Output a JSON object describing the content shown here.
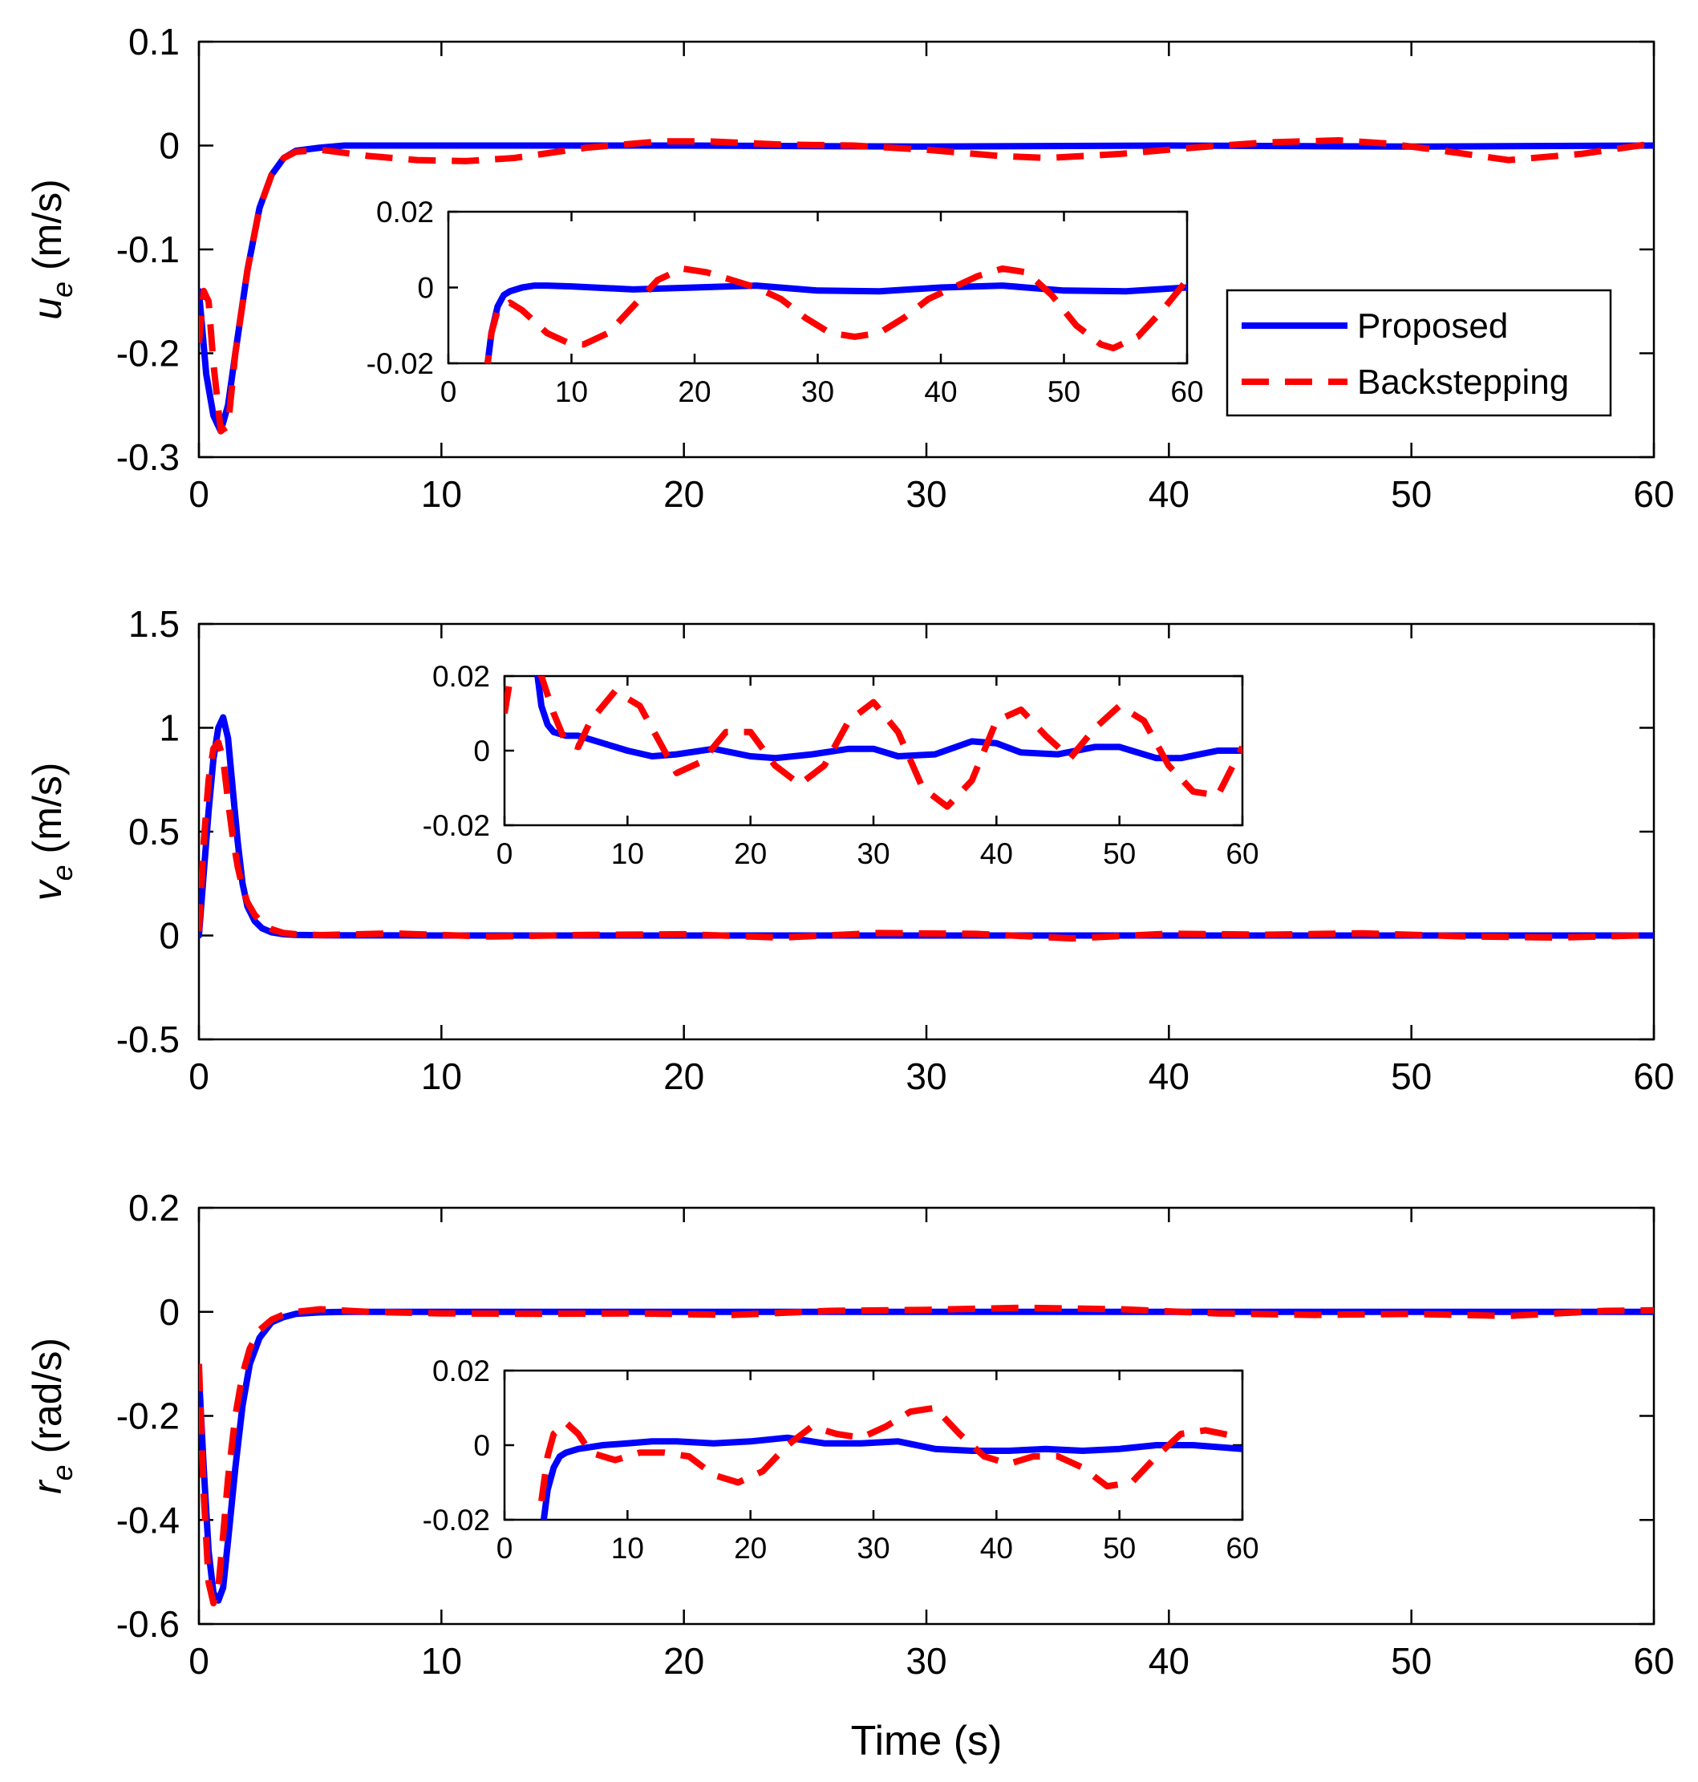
{
  "chart_data": [
    {
      "type": "line",
      "id": "u",
      "ylabel_sym": "u",
      "ylabel_sub": "e",
      "ylabel_unit": " (m/s)",
      "xlim": [
        0,
        60
      ],
      "ylim": [
        -0.3,
        0.1
      ],
      "xticks": [
        0,
        10,
        20,
        30,
        40,
        50,
        60
      ],
      "xtick_labels": [
        "0",
        "10",
        "20",
        "30",
        "40",
        "50",
        "60"
      ],
      "yticks": [
        -0.3,
        -0.2,
        -0.1,
        0,
        0.1
      ],
      "ytick_labels": [
        "-0.3",
        "-0.2",
        "-0.1",
        "0",
        "0.1"
      ],
      "series": [
        {
          "name": "Proposed",
          "x": [
            0,
            0.3,
            0.6,
            0.9,
            1.2,
            1.5,
            2,
            2.5,
            3,
            3.5,
            4,
            5,
            6,
            10,
            20,
            30,
            40,
            50,
            60
          ],
          "y": [
            -0.14,
            -0.22,
            -0.26,
            -0.275,
            -0.25,
            -0.2,
            -0.12,
            -0.06,
            -0.028,
            -0.012,
            -0.005,
            -0.002,
            0,
            0,
            0,
            -0.001,
            0,
            -0.001,
            0
          ]
        },
        {
          "name": "Backstepping",
          "x": [
            0,
            0.2,
            0.4,
            0.6,
            0.9,
            1.2,
            1.5,
            2,
            2.5,
            3,
            3.5,
            4,
            5,
            7,
            9,
            11,
            13,
            16,
            19,
            21,
            24,
            27,
            30,
            33,
            35,
            38,
            41,
            44,
            47,
            49,
            51,
            54,
            57,
            60
          ],
          "y": [
            -0.19,
            -0.14,
            -0.15,
            -0.21,
            -0.275,
            -0.27,
            -0.2,
            -0.12,
            -0.06,
            -0.028,
            -0.012,
            -0.006,
            -0.004,
            -0.01,
            -0.014,
            -0.015,
            -0.012,
            -0.002,
            0.004,
            0.004,
            0.001,
            0,
            -0.004,
            -0.01,
            -0.012,
            -0.008,
            -0.002,
            0.003,
            0.005,
            0.002,
            -0.004,
            -0.014,
            -0.008,
            0.002
          ]
        }
      ],
      "inset": {
        "xlim": [
          0,
          60
        ],
        "ylim": [
          -0.02,
          0.02
        ],
        "xticks": [
          0,
          10,
          20,
          30,
          40,
          50,
          60
        ],
        "xtick_labels": [
          "0",
          "10",
          "20",
          "30",
          "40",
          "50",
          "60"
        ],
        "yticks": [
          -0.02,
          0,
          0.02
        ],
        "ytick_labels": [
          "-0.02",
          "0",
          "0.02"
        ],
        "series": [
          {
            "name": "Proposed",
            "x": [
              3,
              3.5,
              4,
              4.5,
              5,
              6,
              7,
              8,
              10,
              15,
              20,
              25,
              30,
              35,
              40,
              45,
              50,
              55,
              60
            ],
            "y": [
              -0.025,
              -0.012,
              -0.005,
              -0.002,
              -0.001,
              0,
              0.0005,
              0.0005,
              0.0003,
              -0.0005,
              0,
              0.0005,
              -0.0008,
              -0.001,
              0,
              0.0005,
              -0.0008,
              -0.001,
              0
            ]
          },
          {
            "name": "Backstepping",
            "x": [
              3,
              3.5,
              4,
              5,
              6,
              8,
              10,
              11,
              13,
              15,
              17,
              19,
              21,
              23,
              25,
              27,
              29,
              31,
              33,
              35,
              37,
              39,
              41,
              43,
              45,
              47,
              49,
              51,
              53,
              54,
              56,
              58,
              60
            ],
            "y": [
              -0.025,
              -0.012,
              -0.006,
              -0.004,
              -0.006,
              -0.012,
              -0.015,
              -0.015,
              -0.012,
              -0.005,
              0.002,
              0.005,
              0.004,
              0.002,
              0,
              -0.003,
              -0.008,
              -0.012,
              -0.013,
              -0.012,
              -0.008,
              -0.003,
              0,
              0.003,
              0.005,
              0.004,
              -0.002,
              -0.01,
              -0.015,
              -0.016,
              -0.013,
              -0.006,
              0.002
            ]
          }
        ]
      }
    },
    {
      "type": "line",
      "id": "v",
      "ylabel_sym": "v",
      "ylabel_sub": "e",
      "ylabel_unit": " (m/s)",
      "xlim": [
        0,
        60
      ],
      "ylim": [
        -0.5,
        1.5
      ],
      "xticks": [
        0,
        10,
        20,
        30,
        40,
        50,
        60
      ],
      "xtick_labels": [
        "0",
        "10",
        "20",
        "30",
        "40",
        "50",
        "60"
      ],
      "yticks": [
        -0.5,
        0,
        0.5,
        1,
        1.5
      ],
      "ytick_labels": [
        "-0.5",
        "0",
        "0.5",
        "1",
        "1.5"
      ],
      "series": [
        {
          "name": "Proposed",
          "x": [
            0,
            0.2,
            0.4,
            0.6,
            0.8,
            1.0,
            1.2,
            1.4,
            1.6,
            1.8,
            2.0,
            2.3,
            2.6,
            3.0,
            3.5,
            4,
            5,
            10,
            20,
            30,
            40,
            50,
            60
          ],
          "y": [
            0,
            0.3,
            0.6,
            0.85,
            1.0,
            1.05,
            0.95,
            0.7,
            0.45,
            0.25,
            0.14,
            0.07,
            0.035,
            0.015,
            0.006,
            0.003,
            0.001,
            0,
            0,
            0,
            0,
            0,
            0
          ]
        },
        {
          "name": "Backstepping",
          "x": [
            0,
            0.2,
            0.4,
            0.6,
            0.8,
            1.0,
            1.2,
            1.4,
            1.6,
            1.8,
            2.0,
            2.3,
            2.6,
            3.0,
            3.5,
            4,
            5,
            8,
            12,
            16,
            20,
            24,
            28,
            32,
            36,
            40,
            44,
            48,
            52,
            56,
            60
          ],
          "y": [
            0.02,
            0.45,
            0.75,
            0.9,
            0.93,
            0.85,
            0.65,
            0.47,
            0.33,
            0.23,
            0.16,
            0.1,
            0.06,
            0.03,
            0.012,
            0.006,
            0.002,
            0.01,
            -0.005,
            0.003,
            0.006,
            -0.01,
            0.012,
            0.008,
            -0.014,
            0.009,
            0.004,
            0.011,
            -0.004,
            -0.01,
            0.002
          ]
        }
      ],
      "inset": {
        "xlim": [
          0,
          60
        ],
        "ylim": [
          -0.02,
          0.02
        ],
        "xticks": [
          0,
          10,
          20,
          30,
          40,
          50,
          60
        ],
        "xtick_labels": [
          "0",
          "10",
          "20",
          "30",
          "40",
          "50",
          "60"
        ],
        "yticks": [
          -0.02,
          0,
          0.02
        ],
        "ytick_labels": [
          "-0.02",
          "0",
          "0.02"
        ],
        "series": [
          {
            "name": "Proposed",
            "x": [
              2.5,
              3,
              3.5,
              4,
              5,
              6,
              8,
              10,
              12,
              14,
              17,
              20,
              22,
              25,
              28,
              30,
              32,
              35,
              38,
              40,
              42,
              45,
              48,
              50,
              53,
              55,
              58,
              60
            ],
            "y": [
              0.025,
              0.012,
              0.007,
              0.005,
              0.004,
              0.004,
              0.002,
              0,
              -0.0015,
              -0.001,
              0.0005,
              -0.0015,
              -0.002,
              -0.001,
              0.0005,
              0.0005,
              -0.0015,
              -0.001,
              0.0025,
              0.002,
              -0.0005,
              -0.001,
              0.001,
              0.001,
              -0.002,
              -0.002,
              0,
              0
            ]
          },
          {
            "name": "Backstepping",
            "x": [
              0,
              0.5,
              1,
              2,
              3,
              4,
              5,
              6,
              7,
              9,
              11,
              13,
              14,
              16,
              18,
              20,
              22,
              24,
              26,
              28,
              30,
              32,
              34,
              36,
              38,
              40,
              42,
              44,
              46,
              48,
              50,
              52,
              54,
              56,
              58,
              60
            ],
            "y": [
              0.01,
              0.02,
              0.025,
              0.025,
              0.02,
              0.01,
              0.002,
              0.001,
              0.008,
              0.016,
              0.012,
              0,
              -0.006,
              -0.003,
              0.005,
              0.005,
              -0.004,
              -0.009,
              -0.004,
              0.008,
              0.013,
              0.005,
              -0.01,
              -0.015,
              -0.008,
              0.008,
              0.011,
              0.004,
              -0.002,
              0.006,
              0.012,
              0.008,
              -0.004,
              -0.011,
              -0.012,
              0.001
            ]
          }
        ]
      }
    },
    {
      "type": "line",
      "id": "r",
      "ylabel_sym": "r",
      "ylabel_sub": "e",
      "ylabel_unit": " (rad/s)",
      "xlabel": "Time (s)",
      "xlim": [
        0,
        60
      ],
      "ylim": [
        -0.6,
        0.2
      ],
      "xticks": [
        0,
        10,
        20,
        30,
        40,
        50,
        60
      ],
      "xtick_labels": [
        "0",
        "10",
        "20",
        "30",
        "40",
        "50",
        "60"
      ],
      "yticks": [
        -0.6,
        -0.4,
        -0.2,
        0,
        0.2
      ],
      "ytick_labels": [
        "-0.6",
        "-0.4",
        "-0.2",
        "0",
        "0.2"
      ],
      "series": [
        {
          "name": "Proposed",
          "x": [
            0,
            0.2,
            0.4,
            0.6,
            0.8,
            1.0,
            1.2,
            1.5,
            1.8,
            2.1,
            2.5,
            3,
            3.5,
            4,
            5,
            6,
            10,
            20,
            30,
            40,
            50,
            60
          ],
          "y": [
            -0.12,
            -0.3,
            -0.46,
            -0.54,
            -0.555,
            -0.53,
            -0.44,
            -0.3,
            -0.18,
            -0.1,
            -0.05,
            -0.02,
            -0.01,
            -0.004,
            -0.001,
            0,
            0,
            0,
            0,
            0,
            0,
            0
          ]
        },
        {
          "name": "Backstepping",
          "x": [
            0,
            0.2,
            0.4,
            0.6,
            0.8,
            1.0,
            1.2,
            1.5,
            1.8,
            2.1,
            2.5,
            3,
            3.5,
            4,
            5,
            7,
            10,
            14,
            18,
            22,
            26,
            30,
            34,
            38,
            42,
            46,
            50,
            54,
            58,
            60
          ],
          "y": [
            -0.1,
            -0.35,
            -0.52,
            -0.56,
            -0.53,
            -0.43,
            -0.32,
            -0.2,
            -0.12,
            -0.07,
            -0.035,
            -0.015,
            -0.005,
            0,
            0.005,
            0,
            -0.003,
            -0.004,
            -0.003,
            -0.006,
            0.002,
            0.004,
            0.008,
            0.005,
            -0.003,
            -0.006,
            -0.004,
            -0.008,
            0.002,
            0.003
          ]
        }
      ],
      "inset": {
        "xlim": [
          0,
          60
        ],
        "ylim": [
          -0.02,
          0.02
        ],
        "xticks": [
          0,
          10,
          20,
          30,
          40,
          50,
          60
        ],
        "xtick_labels": [
          "0",
          "10",
          "20",
          "30",
          "40",
          "50",
          "60"
        ],
        "yticks": [
          -0.02,
          0,
          0.02
        ],
        "ytick_labels": [
          "-0.02",
          "0",
          "0.02"
        ],
        "series": [
          {
            "name": "Proposed",
            "x": [
              3,
              3.5,
              4,
              4.5,
              5,
              6,
              8,
              10,
              12,
              14,
              17,
              20,
              23,
              26,
              29,
              32,
              35,
              38,
              41,
              44,
              47,
              50,
              53,
              56,
              60
            ],
            "y": [
              -0.025,
              -0.012,
              -0.006,
              -0.003,
              -0.002,
              -0.001,
              0,
              0.0005,
              0.001,
              0.001,
              0.0005,
              0.001,
              0.002,
              0.0005,
              0.0005,
              0.001,
              -0.001,
              -0.0015,
              -0.0015,
              -0.001,
              -0.0015,
              -0.001,
              0,
              0,
              -0.001
            ]
          },
          {
            "name": "Backstepping",
            "x": [
              3,
              3.5,
              4,
              5,
              6,
              7,
              9,
              11,
              13,
              15,
              17,
              19,
              21,
              23,
              25,
              27,
              29,
              31,
              33,
              35,
              37,
              39,
              41,
              43,
              45,
              47,
              49,
              51,
              53,
              55,
              57,
              60
            ],
            "y": [
              -0.015,
              -0.003,
              0.003,
              0.006,
              0.003,
              -0.002,
              -0.004,
              -0.002,
              -0.002,
              -0.003,
              -0.008,
              -0.01,
              -0.007,
              0,
              0.005,
              0.003,
              0.002,
              0.005,
              0.009,
              0.01,
              0.003,
              -0.003,
              -0.005,
              -0.003,
              -0.003,
              -0.006,
              -0.011,
              -0.01,
              -0.003,
              0.003,
              0.004,
              0.002
            ]
          }
        ]
      }
    }
  ],
  "legend": {
    "items": [
      {
        "label": "Proposed",
        "color": "#0000ff",
        "style": "solid"
      },
      {
        "label": "Backstepping",
        "color": "#ff0000",
        "style": "dashed"
      }
    ]
  },
  "colors": {
    "proposed": "#0000ff",
    "backstepping": "#ff0000"
  }
}
